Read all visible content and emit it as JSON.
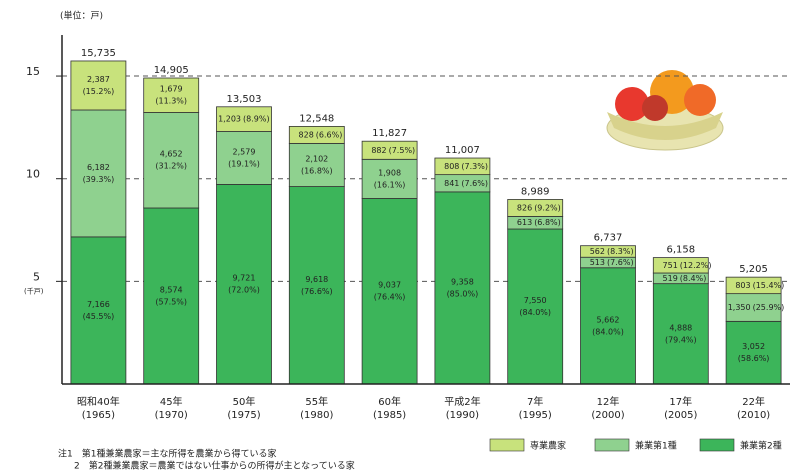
{
  "unit_label": "(単位：戸)",
  "chart_data": {
    "type": "stacked_bar",
    "y_unit_label": "(千戸)",
    "categories": [
      "昭和40年",
      "45年",
      "50年",
      "55年",
      "60年",
      "平成2年",
      "7年",
      "12年",
      "17年",
      "22年"
    ],
    "years": [
      "(1965)",
      "(1970)",
      "(1975)",
      "(1980)",
      "(1985)",
      "(1990)",
      "(1995)",
      "(2000)",
      "(2005)",
      "(2010)"
    ],
    "ylim": [
      0,
      17
    ],
    "yticks": [
      5,
      10,
      15
    ],
    "grid": true,
    "series": [
      {
        "name": "兼業第2種",
        "color": "#3cb55a",
        "values": [
          7.166,
          8.574,
          9.721,
          9.618,
          9.037,
          9.358,
          7.55,
          5.662,
          4.888,
          3.052
        ],
        "value_labels": [
          "7,166",
          "8,574",
          "9,721",
          "9,618",
          "9,037",
          "9,358",
          "7,550",
          "5,662",
          "4,888",
          "3,052"
        ],
        "shares": [
          "(45.5%)",
          "(57.5%)",
          "(72.0%)",
          "(76.6%)",
          "(76.4%)",
          "(85.0%)",
          "(84.0%)",
          "(84.0%)",
          "(79.4%)",
          "(58.6%)"
        ]
      },
      {
        "name": "兼業第1種",
        "color": "#8fd18f",
        "values": [
          6.182,
          4.652,
          2.579,
          2.102,
          1.908,
          0.841,
          0.613,
          0.513,
          0.519,
          1.35
        ],
        "value_labels": [
          "6,182",
          "4,652",
          "2,579",
          "2,102",
          "1,908",
          "841",
          "613",
          "513",
          "519",
          "1,350"
        ],
        "shares": [
          "(39.3%)",
          "(31.2%)",
          "(19.1%)",
          "(16.8%)",
          "(16.1%)",
          "(7.6%)",
          "(6.8%)",
          "(7.6%)",
          "(8.4%)",
          "(25.9%)"
        ]
      },
      {
        "name": "専業農家",
        "color": "#c8e27c",
        "values": [
          2.387,
          1.679,
          1.203,
          0.828,
          0.882,
          0.808,
          0.826,
          0.562,
          0.751,
          0.803
        ],
        "value_labels": [
          "2,387",
          "1,679",
          "1,203",
          "828",
          "882",
          "808",
          "826",
          "562",
          "751",
          "803"
        ],
        "shares": [
          "(15.2%)",
          "(11.3%)",
          "(8.9%)",
          "(6.6%)",
          "(7.5%)",
          "(7.3%)",
          "(9.2%)",
          "(8.3%)",
          "(12.2%)",
          "(15.4%)"
        ]
      }
    ],
    "totals": {
      "values": [
        15.735,
        14.905,
        13.503,
        12.548,
        11.827,
        11.007,
        8.989,
        6.737,
        6.158,
        5.205
      ],
      "value_labels": [
        "15,735",
        "14,905",
        "13,503",
        "12,548",
        "11,827",
        "11,007",
        "8,989",
        "6,737",
        "6,158",
        "5,205"
      ]
    }
  },
  "notes": [
    "注1　第1種兼業農家＝主な所得を農業から得ている家",
    "2　第2種兼業農家＝農業ではない仕事からの所得が主となっている家"
  ]
}
